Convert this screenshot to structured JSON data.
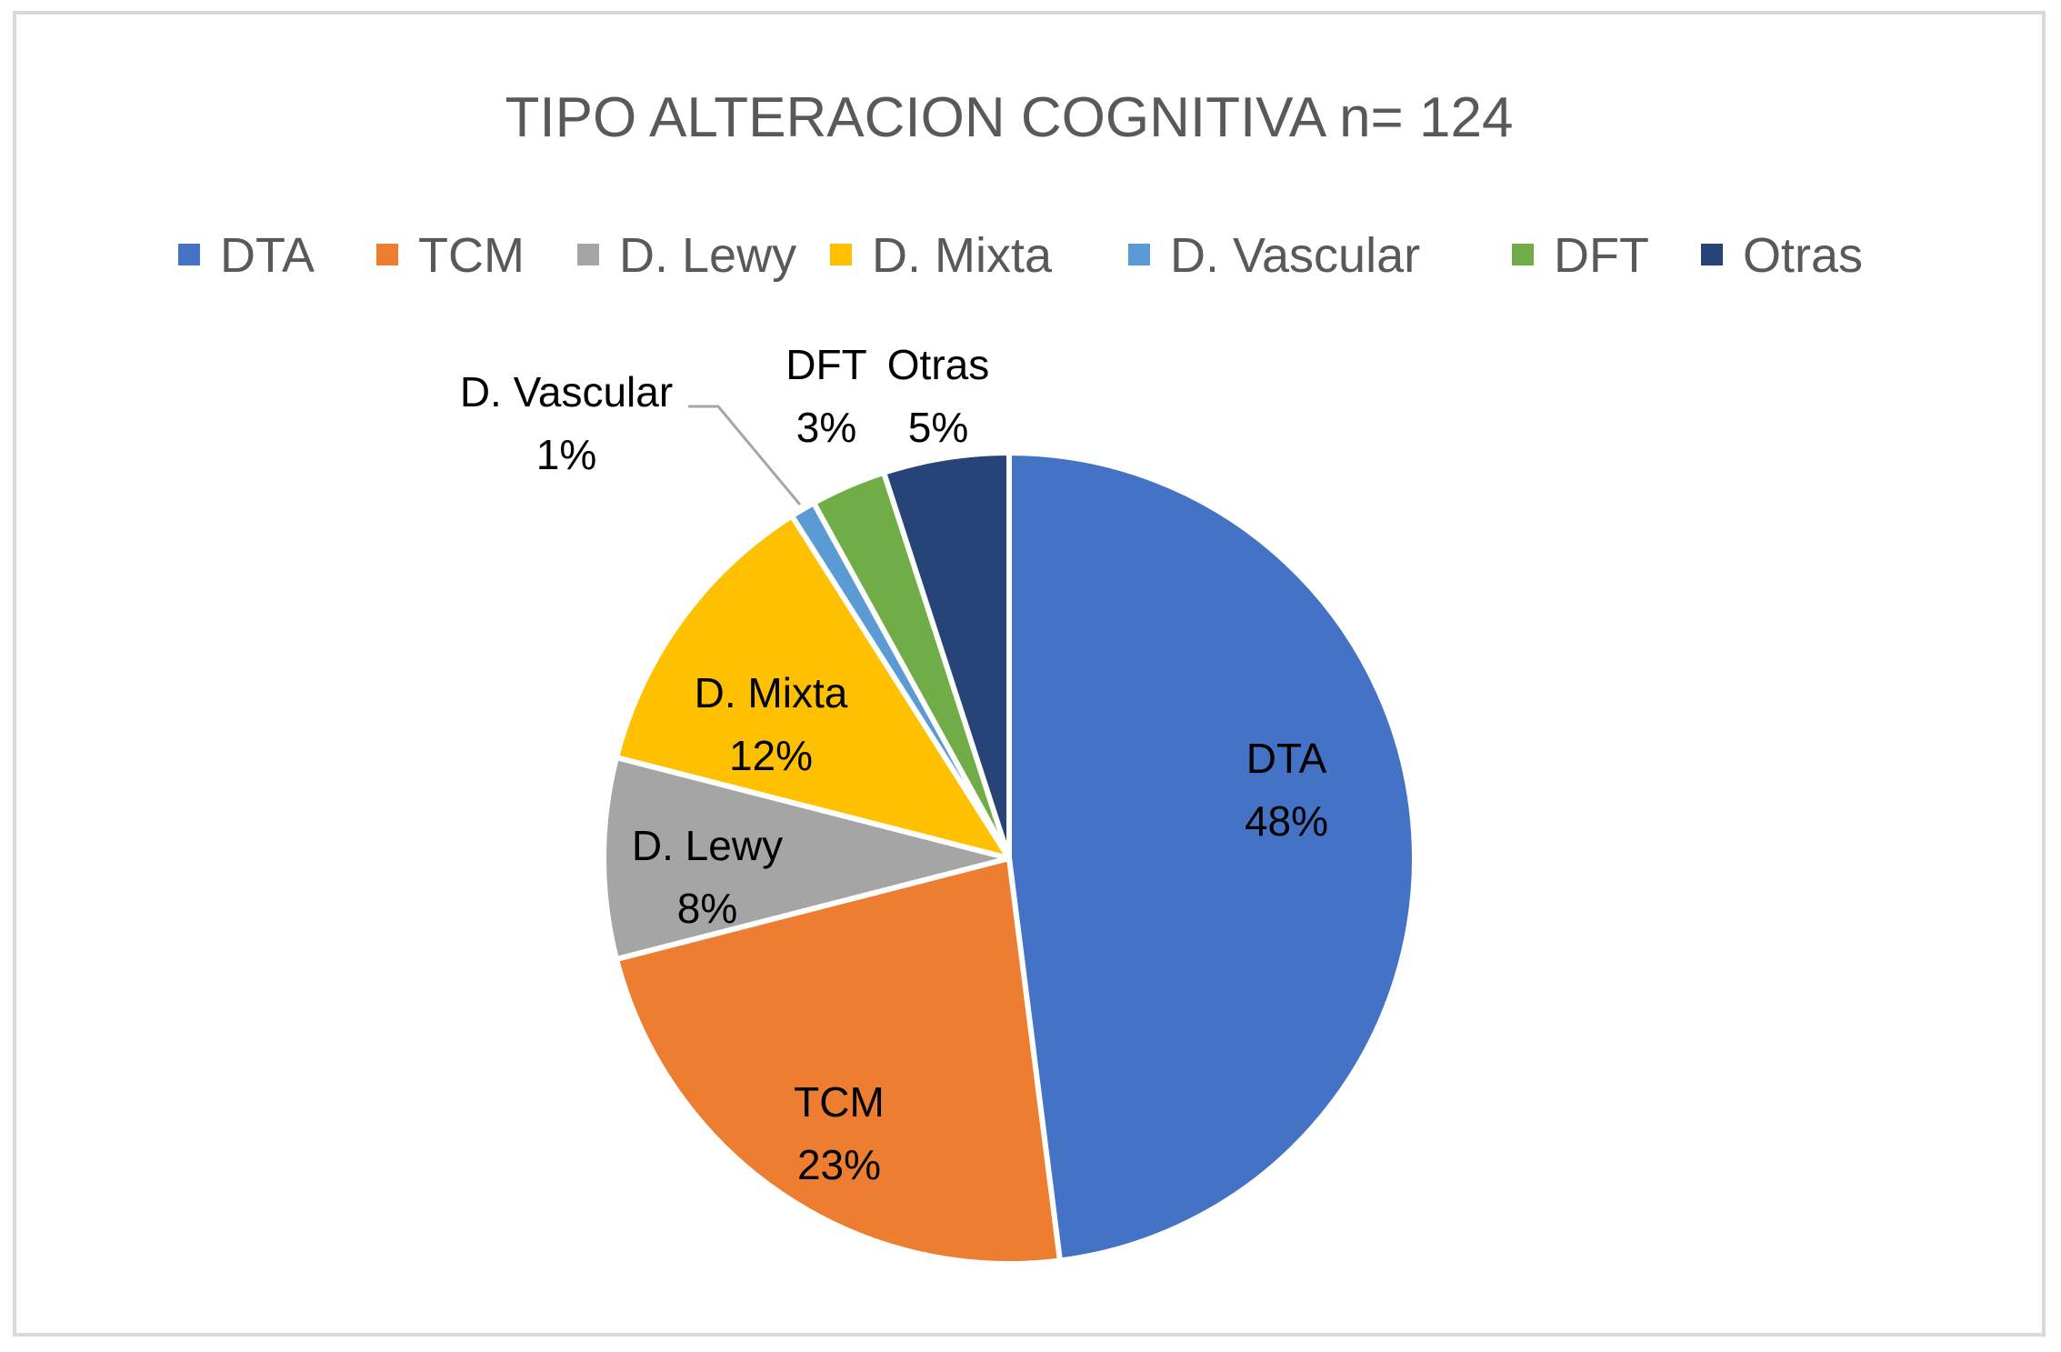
{
  "chart_data": {
    "type": "pie",
    "title": "TIPO ALTERACION COGNITIVA  n= 124",
    "categories": [
      "DTA",
      "TCM",
      "D. Lewy",
      "D. Mixta",
      "D. Vascular",
      "DFT",
      "Otras"
    ],
    "values": [
      48,
      23,
      8,
      12,
      1,
      3,
      5
    ],
    "value_labels": [
      "48%",
      "23%",
      "8%",
      "12%",
      "1%",
      "3%",
      "5%"
    ],
    "colors": [
      "#4472C4",
      "#ED7D31",
      "#A5A5A5",
      "#FFC000",
      "#5B9BD5",
      "#70AD47",
      "#264478"
    ],
    "legend": "top",
    "data_labels": "category and percentage"
  }
}
